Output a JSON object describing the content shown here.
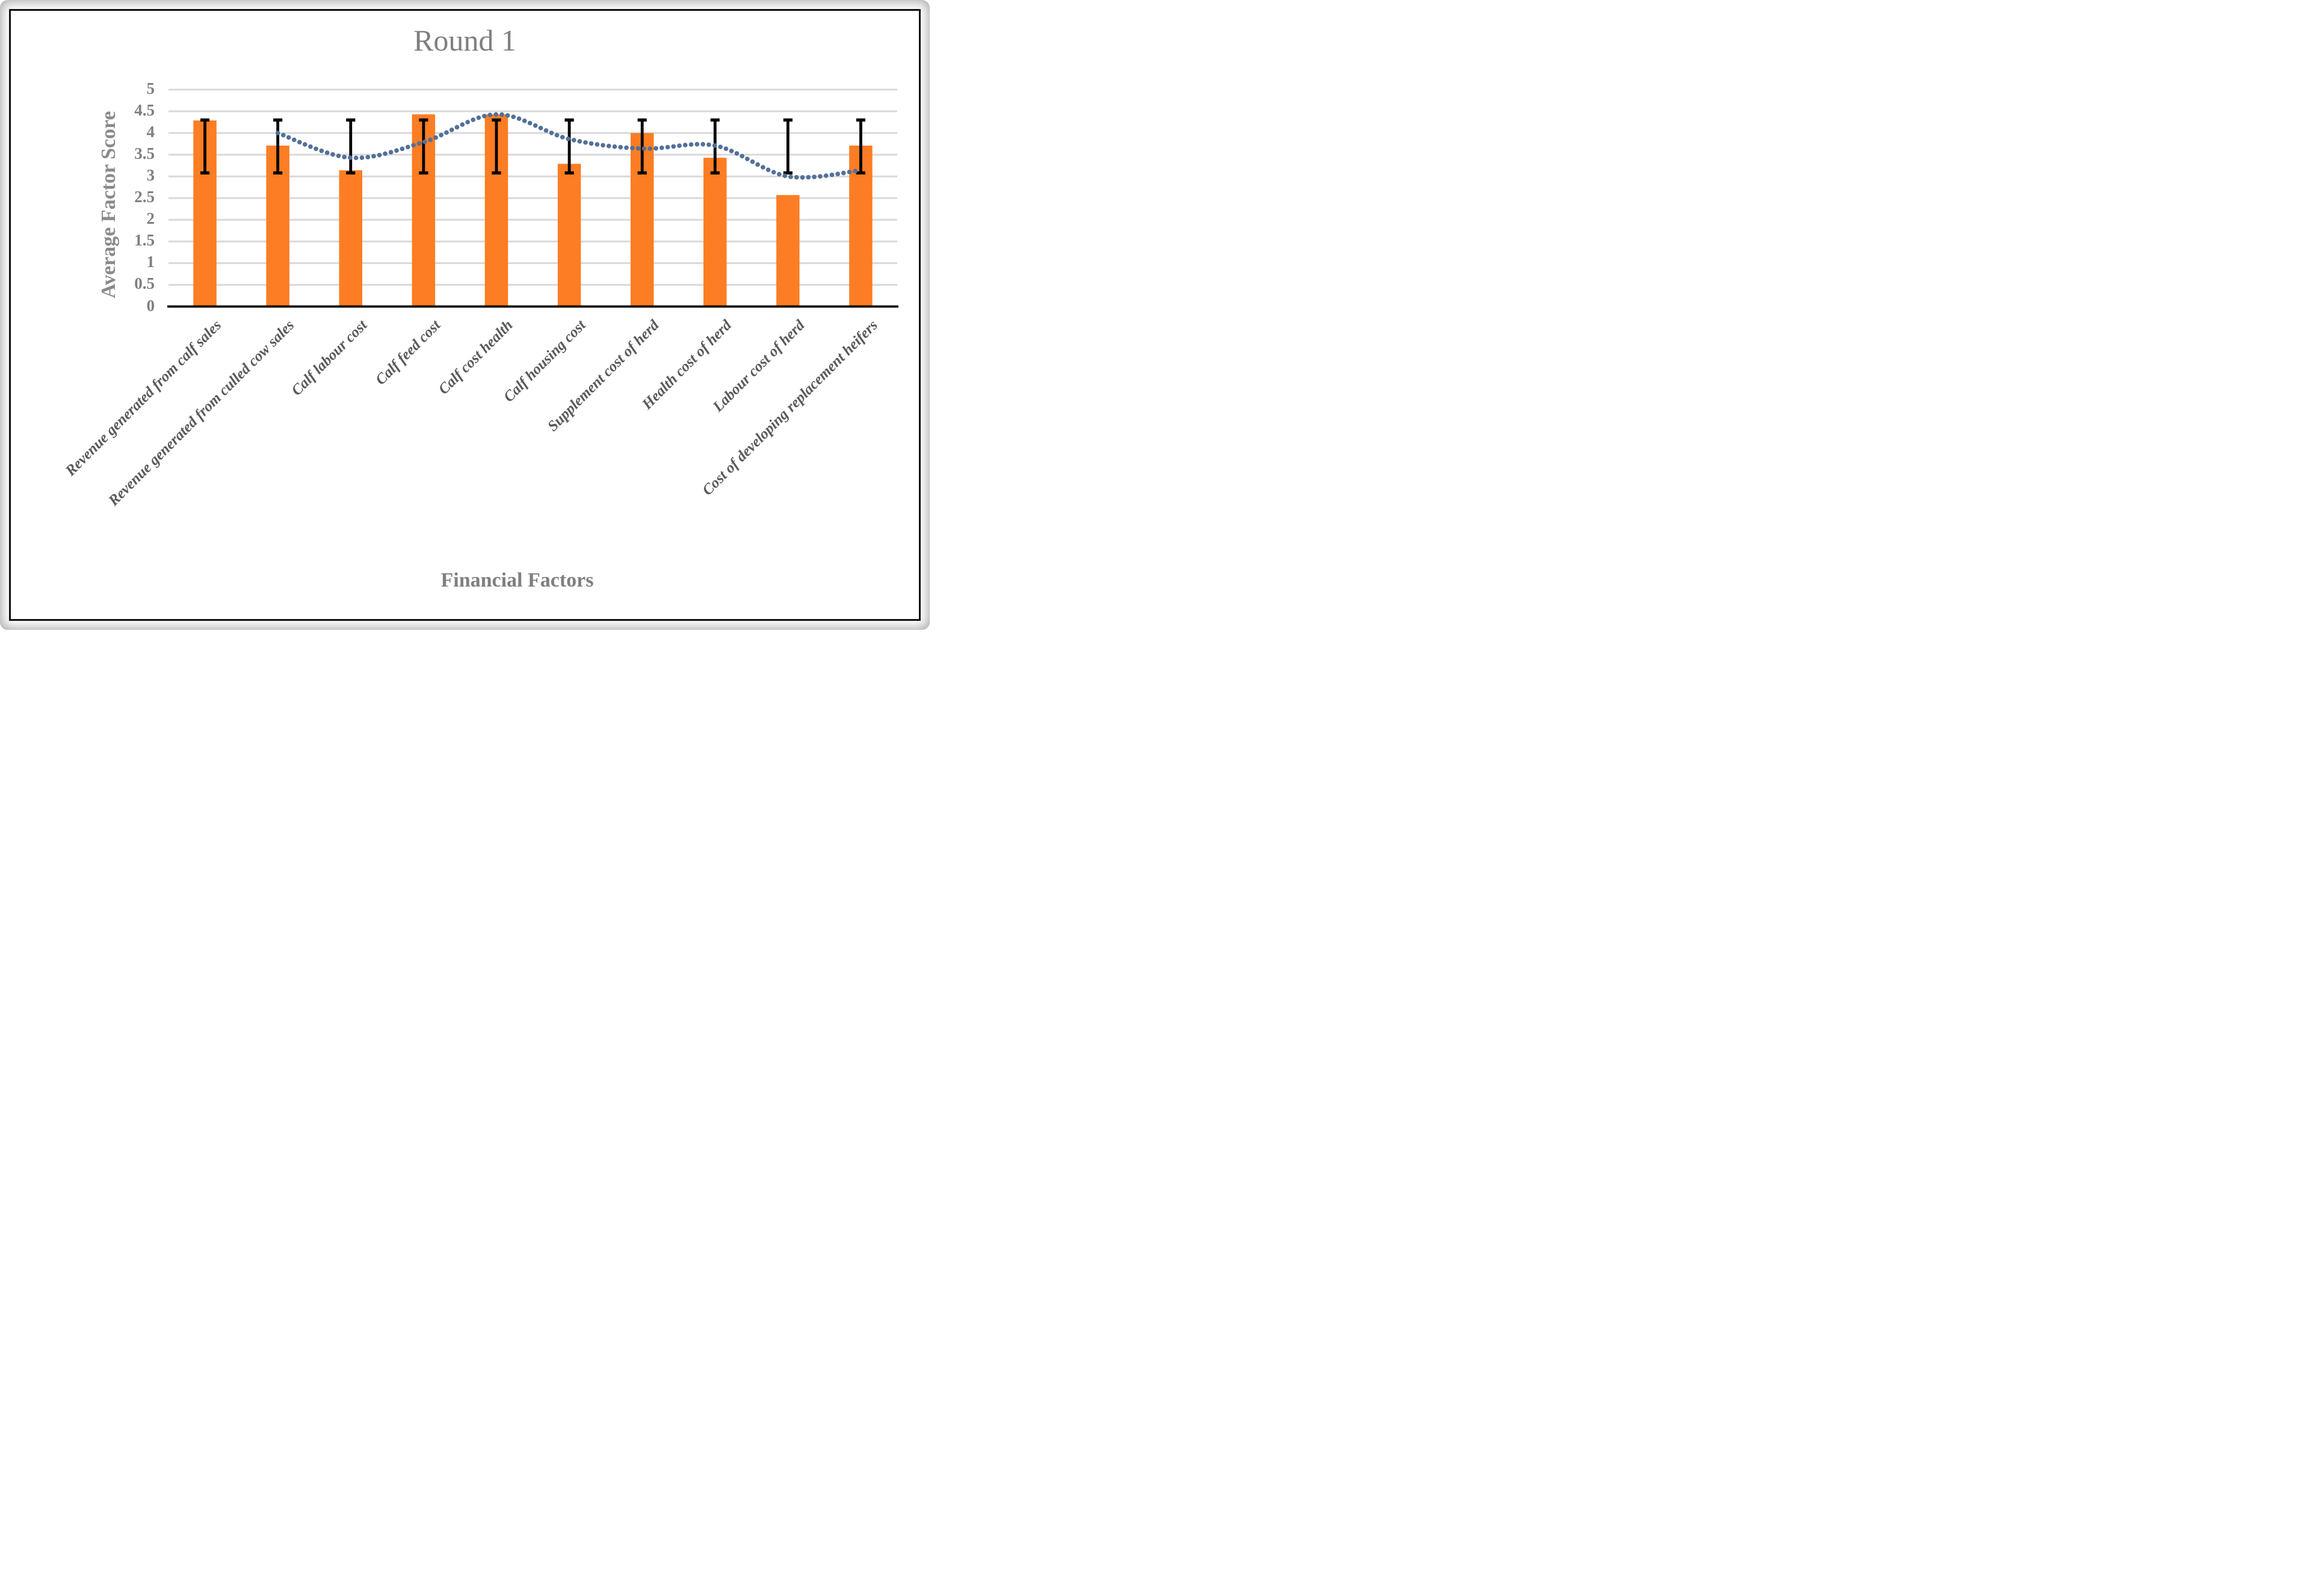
{
  "title": "Round 1",
  "y_axis": {
    "title": "Average Factor Score",
    "ticks": [
      "5",
      "4.5",
      "4",
      "3.5",
      "3",
      "2.5",
      "2",
      "1.5",
      "1",
      "0.5",
      "0"
    ]
  },
  "x_axis": {
    "title": "Financial Factors"
  },
  "chart_data": {
    "type": "bar",
    "title": "Round 1",
    "xlabel": "Financial Factors",
    "ylabel": "Average Factor Score",
    "ylim": [
      0,
      5
    ],
    "ytick_step": 0.5,
    "grid": "horizontal",
    "legend": "none",
    "categories": [
      "Revenue generated from calf sales",
      "Revenue generated from culled cow sales",
      "Calf labour cost",
      "Calf feed cost",
      "Calf cost health",
      "Calf housing cost",
      "Supplement cost of herd",
      "Health cost of herd",
      "Labour cost of herd",
      "Cost of developing replacement heifers"
    ],
    "series": [
      {
        "name": "average-factor-score-bars",
        "type": "bar",
        "color": "#FC7D23",
        "values": [
          4.29,
          3.71,
          3.14,
          4.43,
          4.43,
          3.29,
          4.0,
          3.43,
          2.57,
          3.71
        ]
      },
      {
        "name": "dotted-trend-line",
        "type": "line",
        "style": "dotted",
        "smooth": true,
        "color": "#537099",
        "values": [
          null,
          4.0,
          3.43,
          3.79,
          4.43,
          3.86,
          3.64,
          3.71,
          3.0,
          3.14
        ]
      }
    ],
    "error_bars": {
      "applies_to": "average-factor-score-bars",
      "low": 3.08,
      "high": 4.3,
      "color": "#000000"
    },
    "colors": {
      "bar": "#FC7D23",
      "line": "#537099",
      "gridline": "#D9D9D9",
      "axis_line": "#000000",
      "title": "#7F7F7F",
      "axis_title": "#8A8A8A",
      "tick_label": "#7F7F7F",
      "category_label": "#595959"
    }
  }
}
